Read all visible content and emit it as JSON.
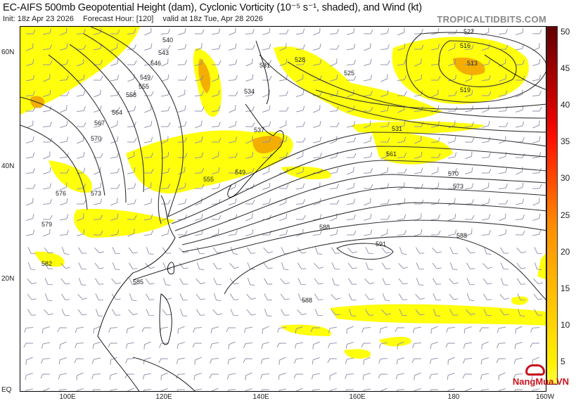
{
  "header": {
    "title": "EC-AIFS 500mb Geopotential Height (dam), Cyclonic Vorticity (10⁻⁵ s⁻¹, shaded), and Wind (kt)",
    "init": "Init: 18z Apr 23 2026",
    "forecast_hour": "Forecast Hour: [120]",
    "valid": "valid at 18z Tue, Apr 28 2026",
    "brand": "TROPICALTIDBITS.COM"
  },
  "map": {
    "lat_labels": [
      "60N",
      "40N",
      "20N",
      "EQ"
    ],
    "lon_labels": [
      "100E",
      "120E",
      "140E",
      "160E",
      "180",
      "160W"
    ],
    "contour_labels": [
      "540",
      "543",
      "546",
      "549",
      "552",
      "555",
      "558",
      "561",
      "564",
      "567",
      "570",
      "573",
      "576",
      "579",
      "582",
      "585",
      "588",
      "591",
      "513",
      "516",
      "519",
      "522",
      "525",
      "528",
      "531",
      "534",
      "537"
    ],
    "colors": {
      "shade_low": "#ffff00",
      "shade_mid": "#f0a000",
      "shade_high": "#d04000",
      "contour": "#333333",
      "barb": "#8a8aa8",
      "coast": "#000000"
    }
  },
  "colorbar": {
    "ticks": [
      "50",
      "45",
      "40",
      "35",
      "30",
      "25",
      "20",
      "15",
      "10",
      "5"
    ],
    "min": 2,
    "max": 51,
    "colors": [
      "#ffff40",
      "#ffef00",
      "#ffdf00",
      "#ffcf00",
      "#ffbf00",
      "#ffaf00",
      "#ff9f00",
      "#ff8f00",
      "#ff7000",
      "#ff5000",
      "#ff3000",
      "#ff1000",
      "#e00000",
      "#c00000",
      "#a00000",
      "#800000",
      "#600000"
    ]
  },
  "watermark": {
    "text": "NangMua.VN"
  }
}
